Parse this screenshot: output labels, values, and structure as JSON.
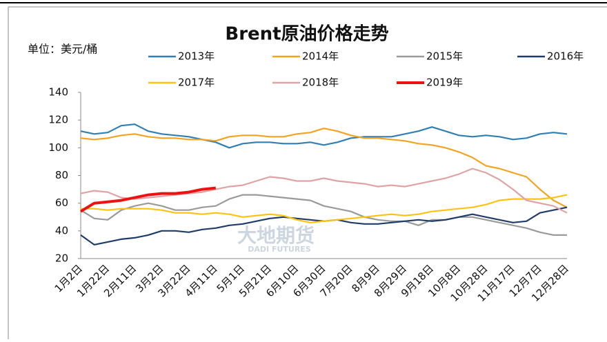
{
  "chart_data": {
    "type": "line",
    "title": "Brent原油价格走势",
    "unit_label": "单位：美元/桶",
    "watermark": [
      "大地期货",
      "DADI FUTURES"
    ],
    "categories": [
      "1月2日",
      null,
      "1月22日",
      null,
      "2月11日",
      null,
      "3月2日",
      null,
      "3月22日",
      null,
      "4月11日",
      null,
      "5月1日",
      null,
      "5月21日",
      null,
      "6月10日",
      null,
      "6月30日",
      null,
      "7月20日",
      null,
      "8月9日",
      null,
      "8月29日",
      null,
      "9月18日",
      null,
      "10月8日",
      null,
      "10月28日",
      null,
      "11月17日",
      null,
      "12月7日",
      null,
      "12月28日"
    ],
    "ylim": [
      20,
      140
    ],
    "yticks": [
      20,
      40,
      60,
      80,
      100,
      120,
      140
    ],
    "grid": false,
    "series": [
      {
        "name": "2013年",
        "color": "#2f7fb5",
        "values": [
          112,
          110,
          111,
          116,
          117,
          112,
          110,
          109,
          108,
          106,
          104,
          100,
          103,
          104,
          104,
          103,
          103,
          104,
          102,
          104,
          107,
          108,
          108,
          108,
          110,
          112,
          115,
          112,
          109,
          108,
          109,
          108,
          106,
          107,
          110,
          111,
          110
        ]
      },
      {
        "name": "2014年",
        "color": "#f5a31f",
        "values": [
          107,
          106,
          107,
          109,
          110,
          108,
          107,
          107,
          106,
          106,
          105,
          108,
          109,
          109,
          108,
          108,
          110,
          111,
          114,
          112,
          109,
          107,
          107,
          106,
          105,
          103,
          102,
          100,
          97,
          93,
          87,
          85,
          82,
          79,
          70,
          62,
          57
        ]
      },
      {
        "name": "2015年",
        "color": "#9a9a9a",
        "values": [
          55,
          49,
          48,
          55,
          58,
          60,
          58,
          55,
          55,
          57,
          58,
          63,
          66,
          66,
          65,
          64,
          63,
          62,
          58,
          56,
          54,
          50,
          48,
          47,
          47,
          44,
          48,
          48,
          50,
          50,
          48,
          46,
          44,
          42,
          39,
          37,
          37
        ]
      },
      {
        "name": "2016年",
        "color": "#1f3b68",
        "values": [
          37,
          30,
          32,
          34,
          35,
          37,
          40,
          40,
          39,
          41,
          42,
          44,
          45,
          47,
          49,
          50,
          49,
          48,
          47,
          48,
          46,
          45,
          45,
          46,
          47,
          48,
          47,
          48,
          50,
          52,
          50,
          48,
          46,
          47,
          53,
          55,
          57
        ]
      },
      {
        "name": "2017年",
        "color": "#ffc20e",
        "values": [
          56,
          56,
          55,
          56,
          56,
          56,
          55,
          53,
          53,
          52,
          53,
          52,
          50,
          51,
          52,
          51,
          48,
          46,
          47,
          48,
          49,
          50,
          51,
          52,
          51,
          52,
          54,
          55,
          56,
          57,
          59,
          62,
          63,
          63,
          63,
          64,
          66
        ]
      },
      {
        "name": "2018年",
        "color": "#e0a3a3",
        "values": [
          67,
          69,
          68,
          64,
          63,
          64,
          65,
          66,
          67,
          68,
          70,
          72,
          73,
          76,
          79,
          78,
          76,
          76,
          78,
          76,
          75,
          74,
          72,
          73,
          72,
          74,
          76,
          78,
          81,
          85,
          82,
          77,
          70,
          62,
          60,
          58,
          53
        ]
      },
      {
        "name": "2019年",
        "color": "#ee1111",
        "values": [
          54,
          60,
          61,
          62,
          64,
          66,
          67,
          67,
          68,
          70,
          71,
          null,
          null,
          null,
          null,
          null,
          null,
          null,
          null,
          null,
          null,
          null,
          null,
          null,
          null,
          null,
          null,
          null,
          null,
          null,
          null,
          null,
          null,
          null,
          null,
          null,
          null
        ]
      }
    ]
  }
}
